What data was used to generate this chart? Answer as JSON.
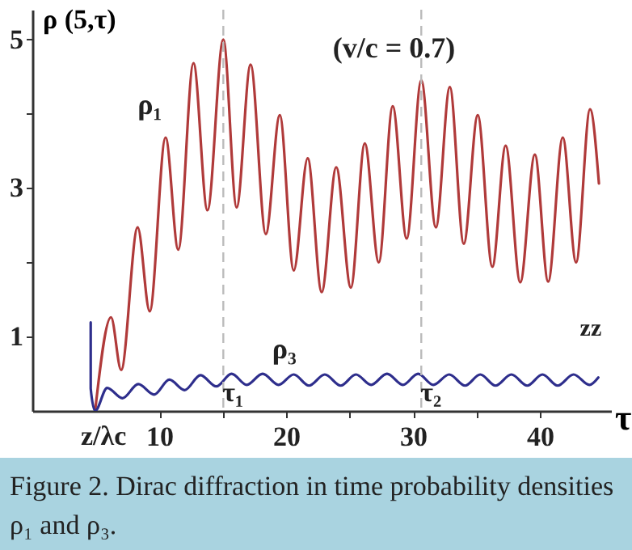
{
  "chart_data": {
    "type": "line",
    "ylabel": "ρ (5,τ)",
    "xlabel": "τ",
    "annotations": [
      "(v/c = 0.7)",
      "z/λc",
      "zz",
      "Figure 2. Dirac diffraction in time probability densities ρ₁ and ρ₃."
    ],
    "xlim": [
      0,
      45.6
    ],
    "ylim": [
      0,
      5.4
    ],
    "xticks": [
      10,
      {
        "value": 15,
        "label": null
      },
      20,
      {
        "value": 25,
        "label": null
      },
      30,
      {
        "value": 35,
        "label": null
      },
      40
    ],
    "yticks": [
      1,
      {
        "value": 2,
        "label": null
      },
      3,
      {
        "value": 4,
        "label": null
      },
      5
    ],
    "grid": false,
    "marker": "none",
    "line_style": "solid",
    "ref_lines": [
      {
        "axis": "x",
        "value": 15.05,
        "label": "τ₁",
        "color": "#bbbbbb",
        "line_style": "dashed"
      },
      {
        "axis": "x",
        "value": 30.65,
        "label": "τ₂",
        "color": "#bbbbbb",
        "line_style": "dashed"
      }
    ],
    "series": [
      {
        "name": "ρ₁",
        "color": "#b03a3a",
        "x": [
          4.95,
          6.2,
          7.0,
          8.3,
          9.25,
          10.5,
          11.5,
          12.7,
          13.8,
          15.05,
          16.1,
          17.2,
          18.4,
          19.5,
          20.6,
          21.7,
          22.8,
          23.95,
          25.1,
          26.2,
          27.3,
          28.4,
          29.5,
          30.65,
          31.8,
          32.9,
          34.0,
          35.1,
          36.25,
          37.3,
          38.45,
          39.6,
          40.65,
          41.8,
          42.85,
          43.95,
          44.65
        ],
        "values": [
          0,
          1.26,
          0.55,
          2.47,
          1.34,
          3.68,
          2.17,
          4.68,
          2.7,
          5.0,
          2.74,
          4.66,
          2.38,
          3.98,
          1.89,
          3.4,
          1.6,
          3.28,
          1.66,
          3.6,
          2.0,
          4.1,
          2.32,
          4.45,
          2.47,
          4.36,
          2.25,
          3.98,
          1.94,
          3.57,
          1.73,
          3.45,
          1.74,
          3.68,
          2.0,
          4.06,
          3.06
        ]
      },
      {
        "name": "ρ₃",
        "color": "#2e2e8c",
        "x": [
          4.6,
          4.6,
          4.95,
          5.9,
          7.1,
          8.35,
          9.6,
          10.8,
          12.0,
          13.25,
          14.5,
          15.7,
          16.9,
          18.15,
          19.4,
          20.6,
          21.8,
          23.05,
          24.3,
          25.5,
          26.7,
          27.95,
          29.2,
          30.4,
          31.6,
          32.85,
          34.1,
          35.3,
          36.5,
          37.75,
          39.0,
          40.2,
          41.4,
          42.65,
          43.9,
          44.6
        ],
        "values": [
          1.19,
          0.3,
          0,
          0.31,
          0.17,
          0.36,
          0.22,
          0.42,
          0.28,
          0.48,
          0.33,
          0.5,
          0.35,
          0.5,
          0.35,
          0.49,
          0.34,
          0.49,
          0.34,
          0.49,
          0.35,
          0.5,
          0.35,
          0.5,
          0.35,
          0.49,
          0.34,
          0.49,
          0.34,
          0.49,
          0.34,
          0.49,
          0.34,
          0.49,
          0.35,
          0.45
        ]
      }
    ]
  }
}
